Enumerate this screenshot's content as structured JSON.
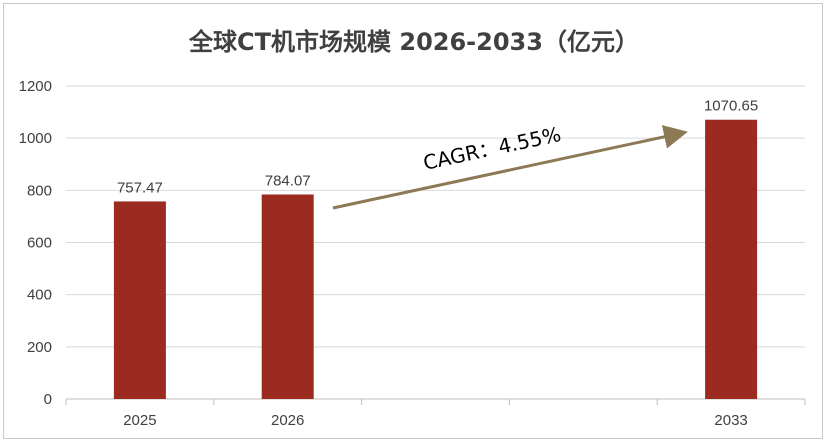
{
  "chart_data": {
    "type": "bar",
    "title": "全球CT机市场规模 2026-2033（亿元）",
    "categories": [
      "2025",
      "2026",
      "",
      "",
      "2033"
    ],
    "values": [
      757.47,
      784.07,
      null,
      null,
      1070.65
    ],
    "data_labels": [
      "757.47",
      "784.07",
      "",
      "",
      "1070.65"
    ],
    "ylim": [
      0,
      1200
    ],
    "yticks": [
      0,
      200,
      400,
      600,
      800,
      1000,
      1200
    ],
    "grid": true,
    "legend": "none",
    "annotation": "CAGR：4.55%",
    "colors": {
      "bar": "#9b2b20",
      "arrow": "#8b7a55",
      "grid": "#d9d9d9",
      "axis": "#bfbfbf"
    }
  }
}
